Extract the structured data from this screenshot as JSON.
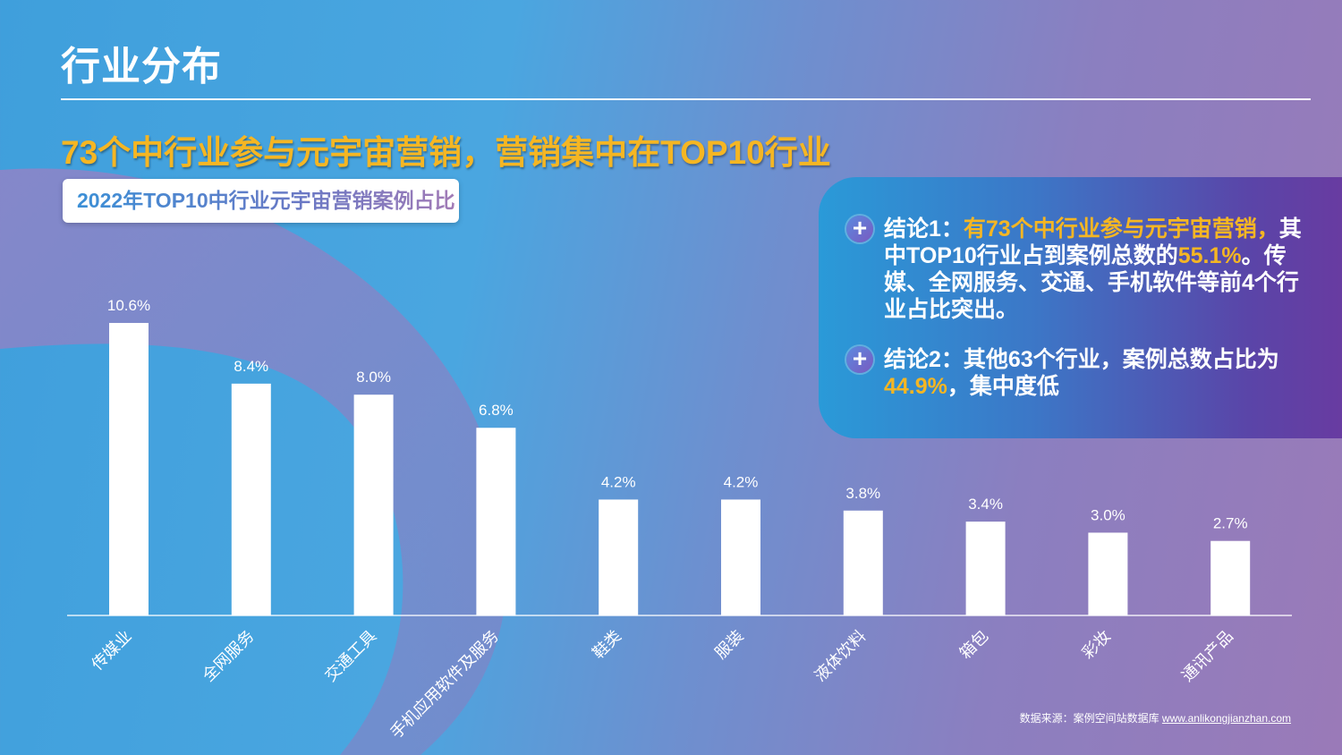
{
  "page": {
    "title": "行业分布",
    "headline": "73个中行业参与元宇宙营销，营销集中在TOP10行业",
    "chart_tag": "2022年TOP10中行业元宇宙营销案例占比"
  },
  "conclusions": [
    {
      "parts": [
        "结论1：",
        "有73个中行业参与元宇宙营销，",
        "其中TOP10行业占到案例总数的",
        "55.1%",
        "。传媒、全网服务、交通、手机软件等前4个行业占比突出。"
      ]
    },
    {
      "parts": [
        "结论2：其他63个行业，案例总数占比为",
        "44.9%",
        "，集中度低"
      ]
    }
  ],
  "source": {
    "label": "数据来源：案例空间站数据库",
    "url": "www.anlikongjianzhan.com"
  },
  "colors": {
    "title": "#ffffff",
    "headline": "#f5b623",
    "bar": "#ffffff",
    "highlight": "#f5b623"
  },
  "chart_data": {
    "type": "bar",
    "title": "2022年TOP10中行业元宇宙营销案例占比",
    "categories": [
      "传媒业",
      "全网服务",
      "交通工具",
      "手机应用软件及服务",
      "鞋类",
      "服装",
      "液体饮料",
      "箱包",
      "彩妆",
      "通讯产品"
    ],
    "values": [
      10.6,
      8.4,
      8.0,
      6.8,
      4.2,
      4.2,
      3.8,
      3.4,
      3.0,
      2.7
    ],
    "value_labels": [
      "10.6%",
      "8.4%",
      "8.0%",
      "6.8%",
      "4.2%",
      "4.2%",
      "3.8%",
      "3.4%",
      "3.0%",
      "2.7%"
    ],
    "unit": "%",
    "xlabel": "",
    "ylabel": "",
    "ylim": [
      0,
      10.6
    ],
    "grid": false,
    "legend": "none"
  }
}
